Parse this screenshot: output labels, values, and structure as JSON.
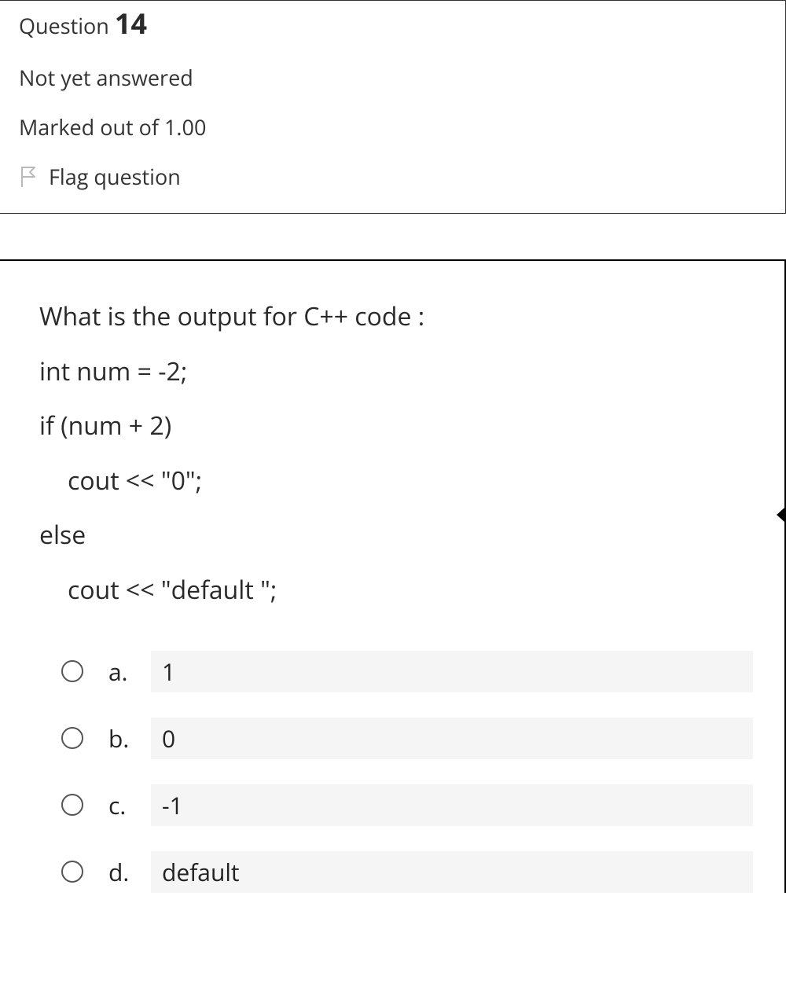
{
  "header": {
    "question_word": "Question",
    "number": "14",
    "status": "Not yet answered",
    "marked": "Marked out of 1.00",
    "flag_label": "Flag question",
    "flag_icon_color": "#b9b9b9"
  },
  "question": {
    "lines": [
      {
        "text": "What is the output for C++ code :",
        "indent": false
      },
      {
        "text": "int num = -2;",
        "indent": false
      },
      {
        "text": "if (num + 2)",
        "indent": false
      },
      {
        "text": "cout << \"0\";",
        "indent": true
      },
      {
        "text": "else",
        "indent": false
      },
      {
        "text": "cout << \"default \";",
        "indent": true
      }
    ]
  },
  "answers": [
    {
      "letter": "a.",
      "text": "1"
    },
    {
      "letter": "b.",
      "text": "0"
    },
    {
      "letter": "c.",
      "text": "-1"
    },
    {
      "letter": "d.",
      "text": "default"
    }
  ],
  "styling": {
    "body_bg": "#ffffff",
    "text_color": "#2a2a2a",
    "option_bg": "#f5f5f5",
    "border_color": "#333333",
    "question_fontsize": 32,
    "header_fontsize": 27,
    "number_fontsize": 36,
    "option_fontsize": 30
  }
}
